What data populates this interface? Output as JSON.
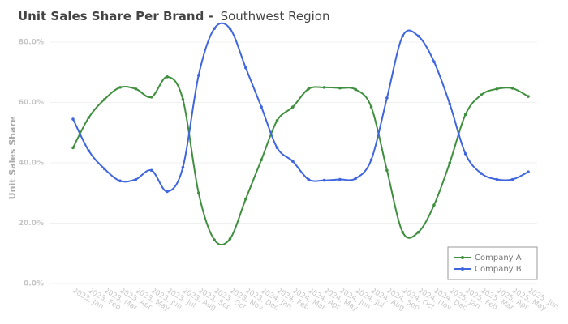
{
  "chart_data": {
    "type": "line",
    "title": "Unit Sales Share Per Brand -",
    "subtitle": "Southwest Region",
    "y_label": "Unit Sales Share",
    "categories": [
      "2023, Jan",
      "2023, Feb",
      "2023, Mar",
      "2023, Apr",
      "2023, May",
      "2023, Jun",
      "2023, Jul",
      "2023, Aug",
      "2023, Sep",
      "2023, Oct",
      "2023, Nov",
      "2023, Dec",
      "2024, Jan",
      "2024, Feb",
      "2024, Mar",
      "2024, Apr",
      "2024, May",
      "2024, Jun",
      "2024, Jul",
      "2024, Aug",
      "2024, Sep",
      "2024, Oct",
      "2024, Nov",
      "2024, Dec",
      "2025, Jan",
      "2025, Feb",
      "2025, Mar",
      "2025, Apr",
      "2025, May",
      "2025, Jun"
    ],
    "series": [
      {
        "name": "Company A",
        "color": "#3f8f3f",
        "values": [
          45,
          55,
          61,
          65,
          64.5,
          61.8,
          68.5,
          61,
          30,
          14.5,
          14.8,
          28,
          41,
          54,
          58.5,
          64.5,
          65,
          64.8,
          64.3,
          58.5,
          37.5,
          17,
          17,
          26,
          40,
          56,
          62.5,
          64.5,
          64.7,
          62
        ]
      },
      {
        "name": "Company B",
        "color": "#3f66dd",
        "values": [
          54.5,
          44,
          38,
          34,
          34.5,
          37.5,
          30.5,
          38.5,
          69,
          84.5,
          84.5,
          71.5,
          58.5,
          45,
          40.5,
          34.5,
          34.2,
          34.5,
          34.8,
          41,
          61.5,
          82,
          82,
          73.5,
          59.5,
          43,
          36.5,
          34.5,
          34.5,
          37
        ]
      }
    ],
    "ylim": [
      0,
      84
    ],
    "yticks": [
      {
        "value": 0,
        "label": "0.0%"
      },
      {
        "value": 20,
        "label": "20.0%"
      },
      {
        "value": 40,
        "label": "40.0%"
      },
      {
        "value": 60,
        "label": "60.0%"
      },
      {
        "value": 80,
        "label": "80.0%"
      }
    ],
    "grid": true,
    "legend": "lower right"
  }
}
